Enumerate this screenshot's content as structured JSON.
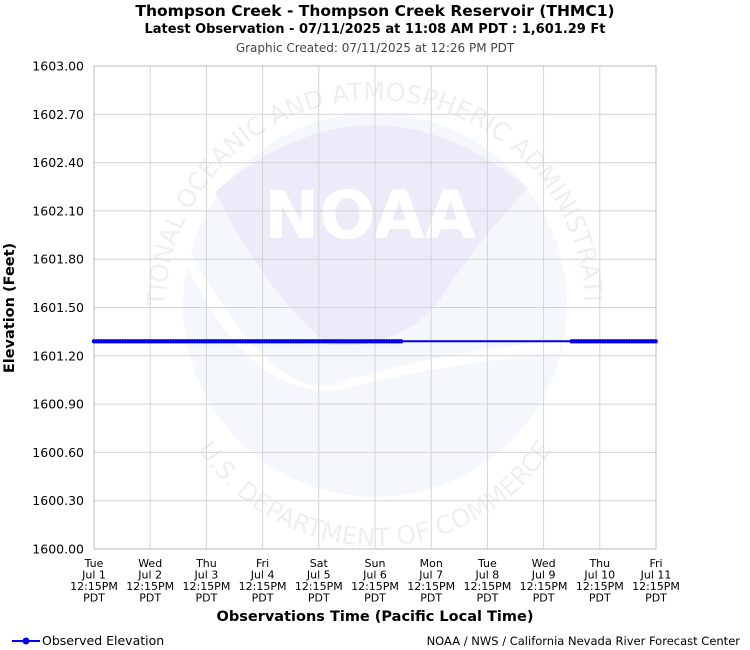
{
  "header": {
    "title": "Thompson Creek - Thompson Creek Reservoir (THMC1)",
    "subtitle": "Latest Observation - 07/11/2025 at 11:08 AM PDT : 1,601.29 Ft",
    "created": "Graphic Created: 07/11/2025 at 12:26 PM PDT"
  },
  "watermark": {
    "logo_text": "NOAA",
    "ring_top": "NATIONAL OCEANIC AND ATMOSPHERIC ADMINISTRATION",
    "ring_bottom": "U.S. DEPARTMENT OF COMMERCE"
  },
  "legend": {
    "label": "Observed Elevation"
  },
  "credit": "NOAA / NWS / California Nevada River Forecast Center",
  "colors": {
    "series": "#0000ee",
    "grid": "#d4d4d4",
    "watermark": "#d6d6f4"
  },
  "chart_data": {
    "type": "line",
    "xlabel": "Observations Time (Pacific Local Time)",
    "ylabel": "Elevation (Feet)",
    "ylim": [
      1600.0,
      1603.0
    ],
    "yticks": [
      "1600.00",
      "1600.30",
      "1600.60",
      "1600.90",
      "1601.20",
      "1601.50",
      "1601.80",
      "1602.10",
      "1602.40",
      "1602.70",
      "1603.00"
    ],
    "xticks": [
      [
        "Tue",
        "Jul 1",
        "12:15PM",
        "PDT"
      ],
      [
        "Wed",
        "Jul 2",
        "12:15PM",
        "PDT"
      ],
      [
        "Thu",
        "Jul 3",
        "12:15PM",
        "PDT"
      ],
      [
        "Fri",
        "Jul 4",
        "12:15PM",
        "PDT"
      ],
      [
        "Sat",
        "Jul 5",
        "12:15PM",
        "PDT"
      ],
      [
        "Sun",
        "Jul 6",
        "12:15PM",
        "PDT"
      ],
      [
        "Mon",
        "Jul 7",
        "12:15PM",
        "PDT"
      ],
      [
        "Tue",
        "Jul 8",
        "12:15PM",
        "PDT"
      ],
      [
        "Wed",
        "Jul 9",
        "12:15PM",
        "PDT"
      ],
      [
        "Thu",
        "Jul 10",
        "12:15PM",
        "PDT"
      ],
      [
        "Fri",
        "Jul 11",
        "12:15PM",
        "PDT"
      ]
    ],
    "grid": true,
    "legend_position": "bottom-left",
    "series": [
      {
        "name": "Observed Elevation",
        "segments": [
          {
            "start": "07/01 12:15PM",
            "end": "07/07 12:15AM",
            "value": 1601.29,
            "markers": "dense"
          },
          {
            "start": "07/07 12:15AM",
            "end": "07/10 12:15AM",
            "value": 1601.29,
            "markers": "none"
          },
          {
            "start": "07/10 12:15AM",
            "end": "07/11 12:15PM",
            "value": 1601.29,
            "markers": "dense"
          }
        ]
      }
    ]
  }
}
